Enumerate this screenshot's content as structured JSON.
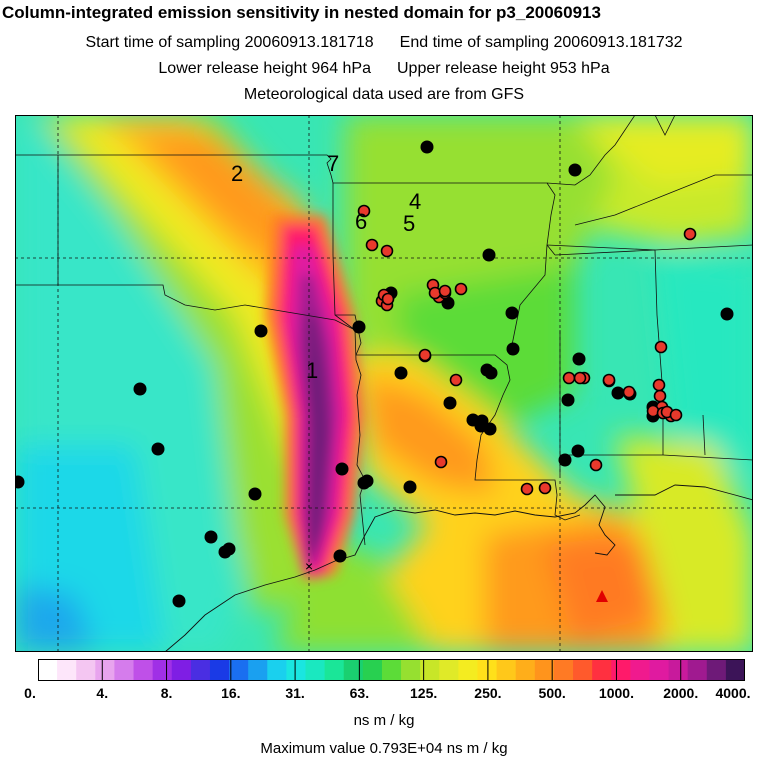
{
  "header": {
    "title": "Column-integrated emission sensitivity in nested domain for p3_20060913",
    "start_label": "Start time of sampling 20060913.181718",
    "end_label": "End time of sampling 20060913.181732",
    "lower_label": "Lower release height  964 hPa",
    "upper_label": "Upper release height  953 hPa",
    "met_label": "Meteorological data used are from GFS"
  },
  "map": {
    "numbers": [
      "1",
      "2",
      "4",
      "5",
      "6",
      "7"
    ],
    "black_sites_count": 44,
    "red_sites_count": 37,
    "marker_colors": {
      "black": "#000000",
      "red": "#e8392c",
      "triangle": "#e00000"
    }
  },
  "colorbar": {
    "tick_labels": [
      "0.",
      "4.",
      "8.",
      "16.",
      "31.",
      "63.",
      "125.",
      "250.",
      "500.",
      "1000.",
      "2000.",
      "4000."
    ],
    "colors": [
      "#ffffff",
      "#fde6fa",
      "#f4c6f2",
      "#e8a4ee",
      "#d57cec",
      "#bf50e8",
      "#a030e6",
      "#7f1ee4",
      "#4a2ee2",
      "#1a3ae6",
      "#1a6ff0",
      "#1aa0f0",
      "#1ad0ee",
      "#1ae6e0",
      "#1ae8c0",
      "#1ae698",
      "#1ad070",
      "#28d050",
      "#5cdc38",
      "#96e030",
      "#c8e628",
      "#e0ea28",
      "#f4ec20",
      "#ffe01a",
      "#ffc81a",
      "#ffae1a",
      "#ff941c",
      "#ff7a24",
      "#ff5a2c",
      "#ff3040",
      "#ff1a6a",
      "#f01a8e",
      "#e01aa0",
      "#c81a9c",
      "#a01a90",
      "#6e1a78",
      "#3c1458"
    ],
    "unit": "ns m / kg",
    "max_text": "Maximum value  0.793E+04 ns m / kg"
  }
}
